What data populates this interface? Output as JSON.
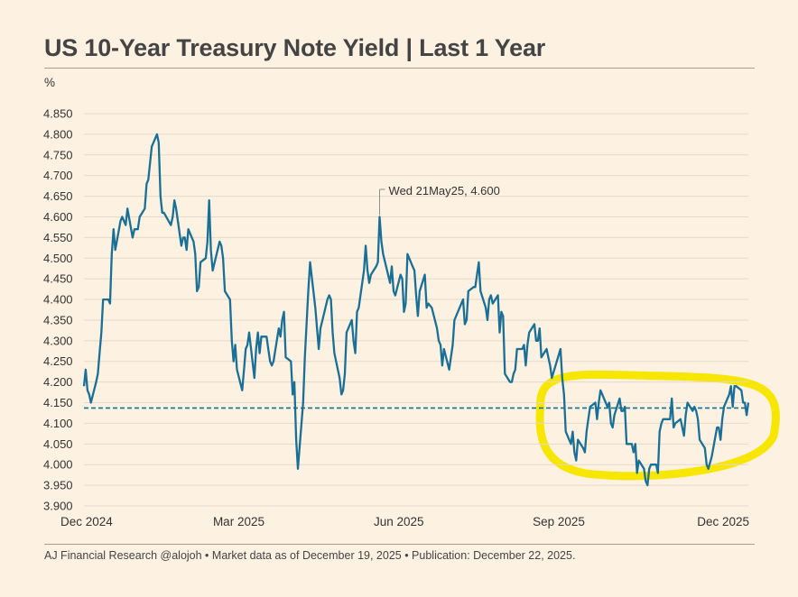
{
  "header": {
    "title": "US 10-Year Treasury Note Yield | Last 1 Year"
  },
  "footer": {
    "text": "AJ Financial Research @alojoh • Market data as of December 19, 2025 • Publication: December 22, 2025."
  },
  "chart_data": {
    "type": "line",
    "ylabel": "%",
    "ylim": [
      3.95,
      4.85
    ],
    "yticks": [
      "4.850",
      "4.800",
      "4.750",
      "4.700",
      "4.650",
      "4.600",
      "4.550",
      "4.500",
      "4.450",
      "4.400",
      "4.350",
      "4.300",
      "4.250",
      "4.200",
      "4.150",
      "4.100",
      "4.050",
      "4.000",
      "3.950",
      "3.900"
    ],
    "xticks": [
      "Dec 2024",
      "Mar 2025",
      "Jun 2025",
      "Sep 2025",
      "Dec 2025"
    ],
    "grid": true,
    "reference_line": 4.137,
    "highlight_color": "#f7e600",
    "line_color": "#1a6f96",
    "annotation": {
      "text": "Wed 21May25, 4.600",
      "date": "2025-05-21",
      "value": 4.6
    },
    "series": [
      {
        "points": [
          [
            "2024-12-02",
            4.19
          ],
          [
            "2024-12-03",
            4.23
          ],
          [
            "2024-12-04",
            4.18
          ],
          [
            "2024-12-05",
            4.17
          ],
          [
            "2024-12-06",
            4.15
          ],
          [
            "2024-12-09",
            4.2
          ],
          [
            "2024-12-10",
            4.22
          ],
          [
            "2024-12-11",
            4.27
          ],
          [
            "2024-12-12",
            4.32
          ],
          [
            "2024-12-13",
            4.4
          ],
          [
            "2024-12-16",
            4.4
          ],
          [
            "2024-12-17",
            4.39
          ],
          [
            "2024-12-18",
            4.51
          ],
          [
            "2024-12-19",
            4.57
          ],
          [
            "2024-12-20",
            4.52
          ],
          [
            "2024-12-23",
            4.59
          ],
          [
            "2024-12-24",
            4.6
          ],
          [
            "2024-12-26",
            4.58
          ],
          [
            "2024-12-27",
            4.62
          ],
          [
            "2024-12-30",
            4.55
          ],
          [
            "2024-12-31",
            4.57
          ],
          [
            "2025-01-02",
            4.57
          ],
          [
            "2025-01-03",
            4.6
          ],
          [
            "2025-01-06",
            4.62
          ],
          [
            "2025-01-07",
            4.68
          ],
          [
            "2025-01-08",
            4.69
          ],
          [
            "2025-01-10",
            4.77
          ],
          [
            "2025-01-13",
            4.8
          ],
          [
            "2025-01-14",
            4.78
          ],
          [
            "2025-01-15",
            4.65
          ],
          [
            "2025-01-16",
            4.61
          ],
          [
            "2025-01-17",
            4.61
          ],
          [
            "2025-01-21",
            4.58
          ],
          [
            "2025-01-22",
            4.6
          ],
          [
            "2025-01-23",
            4.64
          ],
          [
            "2025-01-24",
            4.62
          ],
          [
            "2025-01-27",
            4.53
          ],
          [
            "2025-01-28",
            4.55
          ],
          [
            "2025-01-29",
            4.55
          ],
          [
            "2025-01-30",
            4.52
          ],
          [
            "2025-01-31",
            4.57
          ],
          [
            "2025-02-03",
            4.54
          ],
          [
            "2025-02-04",
            4.51
          ],
          [
            "2025-02-05",
            4.42
          ],
          [
            "2025-02-06",
            4.43
          ],
          [
            "2025-02-07",
            4.49
          ],
          [
            "2025-02-10",
            4.5
          ],
          [
            "2025-02-11",
            4.54
          ],
          [
            "2025-02-12",
            4.64
          ],
          [
            "2025-02-13",
            4.52
          ],
          [
            "2025-02-14",
            4.47
          ],
          [
            "2025-02-18",
            4.54
          ],
          [
            "2025-02-19",
            4.53
          ],
          [
            "2025-02-20",
            4.5
          ],
          [
            "2025-02-21",
            4.42
          ],
          [
            "2025-02-24",
            4.4
          ],
          [
            "2025-02-25",
            4.3
          ],
          [
            "2025-02-26",
            4.25
          ],
          [
            "2025-02-27",
            4.29
          ],
          [
            "2025-02-28",
            4.23
          ],
          [
            "2025-03-03",
            4.18
          ],
          [
            "2025-03-04",
            4.23
          ],
          [
            "2025-03-05",
            4.28
          ],
          [
            "2025-03-06",
            4.29
          ],
          [
            "2025-03-07",
            4.32
          ],
          [
            "2025-03-10",
            4.21
          ],
          [
            "2025-03-11",
            4.28
          ],
          [
            "2025-03-12",
            4.32
          ],
          [
            "2025-03-13",
            4.27
          ],
          [
            "2025-03-14",
            4.31
          ],
          [
            "2025-03-17",
            4.31
          ],
          [
            "2025-03-18",
            4.28
          ],
          [
            "2025-03-19",
            4.25
          ],
          [
            "2025-03-20",
            4.24
          ],
          [
            "2025-03-21",
            4.25
          ],
          [
            "2025-03-24",
            4.33
          ],
          [
            "2025-03-25",
            4.31
          ],
          [
            "2025-03-26",
            4.35
          ],
          [
            "2025-03-27",
            4.37
          ],
          [
            "2025-03-28",
            4.26
          ],
          [
            "2025-03-31",
            4.25
          ],
          [
            "2025-04-01",
            4.17
          ],
          [
            "2025-04-02",
            4.2
          ],
          [
            "2025-04-03",
            4.06
          ],
          [
            "2025-04-04",
            3.99
          ],
          [
            "2025-04-07",
            4.15
          ],
          [
            "2025-04-08",
            4.26
          ],
          [
            "2025-04-09",
            4.34
          ],
          [
            "2025-04-10",
            4.42
          ],
          [
            "2025-04-11",
            4.49
          ],
          [
            "2025-04-14",
            4.38
          ],
          [
            "2025-04-15",
            4.33
          ],
          [
            "2025-04-16",
            4.28
          ],
          [
            "2025-04-17",
            4.33
          ],
          [
            "2025-04-21",
            4.4
          ],
          [
            "2025-04-22",
            4.41
          ],
          [
            "2025-04-23",
            4.4
          ],
          [
            "2025-04-24",
            4.32
          ],
          [
            "2025-04-25",
            4.27
          ],
          [
            "2025-04-28",
            4.21
          ],
          [
            "2025-04-29",
            4.17
          ],
          [
            "2025-04-30",
            4.18
          ],
          [
            "2025-05-01",
            4.22
          ],
          [
            "2025-05-02",
            4.32
          ],
          [
            "2025-05-05",
            4.35
          ],
          [
            "2025-05-06",
            4.3
          ],
          [
            "2025-05-07",
            4.27
          ],
          [
            "2025-05-08",
            4.37
          ],
          [
            "2025-05-09",
            4.38
          ],
          [
            "2025-05-12",
            4.47
          ],
          [
            "2025-05-13",
            4.53
          ],
          [
            "2025-05-14",
            4.47
          ],
          [
            "2025-05-15",
            4.44
          ],
          [
            "2025-05-16",
            4.46
          ],
          [
            "2025-05-19",
            4.48
          ],
          [
            "2025-05-20",
            4.49
          ],
          [
            "2025-05-21",
            4.6
          ],
          [
            "2025-05-22",
            4.54
          ],
          [
            "2025-05-23",
            4.51
          ],
          [
            "2025-05-27",
            4.44
          ],
          [
            "2025-05-28",
            4.48
          ],
          [
            "2025-05-29",
            4.42
          ],
          [
            "2025-05-30",
            4.41
          ],
          [
            "2025-06-02",
            4.46
          ],
          [
            "2025-06-03",
            4.45
          ],
          [
            "2025-06-04",
            4.37
          ],
          [
            "2025-06-05",
            4.39
          ],
          [
            "2025-06-06",
            4.51
          ],
          [
            "2025-06-09",
            4.48
          ],
          [
            "2025-06-10",
            4.47
          ],
          [
            "2025-06-11",
            4.41
          ],
          [
            "2025-06-12",
            4.36
          ],
          [
            "2025-06-13",
            4.42
          ],
          [
            "2025-06-16",
            4.46
          ],
          [
            "2025-06-17",
            4.38
          ],
          [
            "2025-06-18",
            4.39
          ],
          [
            "2025-06-20",
            4.38
          ],
          [
            "2025-06-23",
            4.33
          ],
          [
            "2025-06-24",
            4.3
          ],
          [
            "2025-06-25",
            4.29
          ],
          [
            "2025-06-26",
            4.24
          ],
          [
            "2025-06-27",
            4.28
          ],
          [
            "2025-06-30",
            4.23
          ],
          [
            "2025-07-01",
            4.26
          ],
          [
            "2025-07-02",
            4.29
          ],
          [
            "2025-07-03",
            4.35
          ],
          [
            "2025-07-07",
            4.39
          ],
          [
            "2025-07-08",
            4.4
          ],
          [
            "2025-07-09",
            4.34
          ],
          [
            "2025-07-10",
            4.35
          ],
          [
            "2025-07-11",
            4.42
          ],
          [
            "2025-07-14",
            4.43
          ],
          [
            "2025-07-15",
            4.43
          ],
          [
            "2025-07-16",
            4.46
          ],
          [
            "2025-07-17",
            4.49
          ],
          [
            "2025-07-18",
            4.42
          ],
          [
            "2025-07-21",
            4.38
          ],
          [
            "2025-07-22",
            4.35
          ],
          [
            "2025-07-23",
            4.4
          ],
          [
            "2025-07-24",
            4.41
          ],
          [
            "2025-07-25",
            4.39
          ],
          [
            "2025-07-28",
            4.41
          ],
          [
            "2025-07-29",
            4.32
          ],
          [
            "2025-07-30",
            4.37
          ],
          [
            "2025-07-31",
            4.36
          ],
          [
            "2025-08-01",
            4.22
          ],
          [
            "2025-08-04",
            4.2
          ],
          [
            "2025-08-05",
            4.2
          ],
          [
            "2025-08-06",
            4.22
          ],
          [
            "2025-08-07",
            4.23
          ],
          [
            "2025-08-08",
            4.28
          ],
          [
            "2025-08-11",
            4.28
          ],
          [
            "2025-08-12",
            4.29
          ],
          [
            "2025-08-13",
            4.24
          ],
          [
            "2025-08-14",
            4.29
          ],
          [
            "2025-08-15",
            4.32
          ],
          [
            "2025-08-18",
            4.34
          ],
          [
            "2025-08-19",
            4.3
          ],
          [
            "2025-08-20",
            4.3
          ],
          [
            "2025-08-21",
            4.33
          ],
          [
            "2025-08-22",
            4.26
          ],
          [
            "2025-08-25",
            4.28
          ],
          [
            "2025-08-26",
            4.26
          ],
          [
            "2025-08-27",
            4.24
          ],
          [
            "2025-08-28",
            4.21
          ],
          [
            "2025-09-02",
            4.28
          ],
          [
            "2025-09-03",
            4.21
          ],
          [
            "2025-09-04",
            4.17
          ],
          [
            "2025-09-05",
            4.08
          ],
          [
            "2025-09-08",
            4.05
          ],
          [
            "2025-09-09",
            4.08
          ],
          [
            "2025-09-10",
            4.03
          ],
          [
            "2025-09-11",
            4.01
          ],
          [
            "2025-09-12",
            4.06
          ],
          [
            "2025-09-15",
            4.04
          ],
          [
            "2025-09-16",
            4.03
          ],
          [
            "2025-09-17",
            4.08
          ],
          [
            "2025-09-18",
            4.11
          ],
          [
            "2025-09-19",
            4.14
          ],
          [
            "2025-09-22",
            4.15
          ],
          [
            "2025-09-23",
            4.11
          ],
          [
            "2025-09-24",
            4.15
          ],
          [
            "2025-09-25",
            4.18
          ],
          [
            "2025-09-26",
            4.17
          ],
          [
            "2025-09-29",
            4.14
          ],
          [
            "2025-09-30",
            4.15
          ],
          [
            "2025-10-01",
            4.1
          ],
          [
            "2025-10-02",
            4.09
          ],
          [
            "2025-10-03",
            4.12
          ],
          [
            "2025-10-06",
            4.16
          ],
          [
            "2025-10-07",
            4.13
          ],
          [
            "2025-10-08",
            4.13
          ],
          [
            "2025-10-09",
            4.14
          ],
          [
            "2025-10-10",
            4.05
          ],
          [
            "2025-10-13",
            4.05
          ],
          [
            "2025-10-14",
            4.03
          ],
          [
            "2025-10-15",
            4.05
          ],
          [
            "2025-10-16",
            3.98
          ],
          [
            "2025-10-17",
            4.01
          ],
          [
            "2025-10-20",
            3.99
          ],
          [
            "2025-10-21",
            3.96
          ],
          [
            "2025-10-22",
            3.95
          ],
          [
            "2025-10-23",
            3.99
          ],
          [
            "2025-10-24",
            4.0
          ],
          [
            "2025-10-27",
            4.0
          ],
          [
            "2025-10-28",
            3.98
          ],
          [
            "2025-10-29",
            4.08
          ],
          [
            "2025-10-30",
            4.1
          ],
          [
            "2025-10-31",
            4.11
          ],
          [
            "2025-11-03",
            4.11
          ],
          [
            "2025-11-04",
            4.11
          ],
          [
            "2025-11-05",
            4.16
          ],
          [
            "2025-11-06",
            4.09
          ],
          [
            "2025-11-07",
            4.1
          ],
          [
            "2025-11-10",
            4.11
          ],
          [
            "2025-11-12",
            4.07
          ],
          [
            "2025-11-13",
            4.12
          ],
          [
            "2025-11-14",
            4.15
          ],
          [
            "2025-11-17",
            4.13
          ],
          [
            "2025-11-18",
            4.14
          ],
          [
            "2025-11-19",
            4.13
          ],
          [
            "2025-11-20",
            4.11
          ],
          [
            "2025-11-21",
            4.06
          ],
          [
            "2025-11-24",
            4.04
          ],
          [
            "2025-11-25",
            4.0
          ],
          [
            "2025-11-26",
            3.99
          ],
          [
            "2025-11-28",
            4.02
          ],
          [
            "2025-12-01",
            4.09
          ],
          [
            "2025-12-02",
            4.09
          ],
          [
            "2025-12-03",
            4.06
          ],
          [
            "2025-12-04",
            4.11
          ],
          [
            "2025-12-05",
            4.14
          ],
          [
            "2025-12-08",
            4.17
          ],
          [
            "2025-12-09",
            4.19
          ],
          [
            "2025-12-10",
            4.14
          ],
          [
            "2025-12-11",
            4.19
          ],
          [
            "2025-12-12",
            4.19
          ],
          [
            "2025-12-15",
            4.18
          ],
          [
            "2025-12-16",
            4.15
          ],
          [
            "2025-12-17",
            4.15
          ],
          [
            "2025-12-18",
            4.12
          ],
          [
            "2025-12-19",
            4.15
          ]
        ]
      }
    ]
  }
}
